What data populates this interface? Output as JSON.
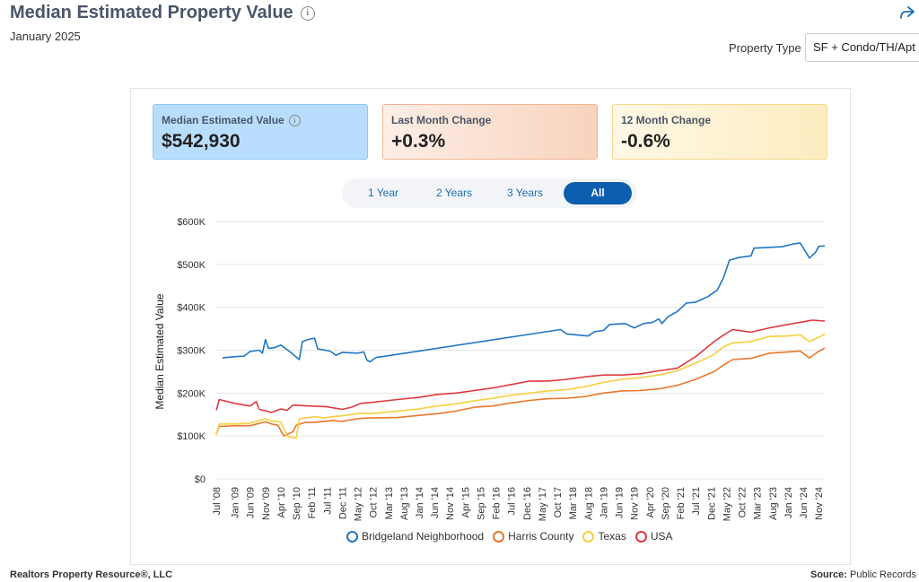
{
  "header": {
    "title": "Median Estimated Property Value",
    "subtitle": "January 2025",
    "property_type_label": "Property Type",
    "property_type_value": "SF + Condo/TH/Apt"
  },
  "cards": [
    {
      "label": "Median Estimated Value",
      "value": "$542,930"
    },
    {
      "label": "Last Month Change",
      "value": "+0.3%"
    },
    {
      "label": "12 Month Change",
      "value": "-0.6%"
    }
  ],
  "tabs": [
    {
      "label": "1 Year",
      "active": false
    },
    {
      "label": "2 Years",
      "active": false
    },
    {
      "label": "3 Years",
      "active": false
    },
    {
      "label": "All",
      "active": true
    }
  ],
  "footer": {
    "left": "Realtors Property Resource®, LLC",
    "right_label": "Source:",
    "right_value": "Public Records"
  },
  "colors": {
    "Bridgeland Neighborhood": "#1f77c4",
    "Harris County": "#e8772e",
    "Texas": "#f7cf3e",
    "USA": "#e0393e"
  },
  "chart_data": {
    "type": "line",
    "ylabel": "Median Estimated Value",
    "ylim": [
      0,
      600000
    ],
    "yticks": [
      "$0",
      "$100K",
      "$200K",
      "$300K",
      "$400K",
      "$500K",
      "$600K"
    ],
    "xticks": [
      "Jul '08",
      "Jan '09",
      "Jun '09",
      "Nov '09",
      "Apr '10",
      "Sep '10",
      "Feb '11",
      "Jul '11",
      "Dec '11",
      "May '12",
      "Oct '12",
      "Mar '13",
      "Aug '13",
      "Jan '14",
      "Jun '14",
      "Nov '14",
      "Apr '15",
      "Sep '15",
      "Feb '16",
      "Jul '16",
      "Dec '16",
      "May '17",
      "Oct '17",
      "Mar '18",
      "Aug '18",
      "Jan '19",
      "Jun '19",
      "Nov '19",
      "Apr '20",
      "Sep '20",
      "Feb '21",
      "Jul '21",
      "Dec '21",
      "May '22",
      "Oct '22",
      "Mar '23",
      "Aug '23",
      "Jan '24",
      "Jun '24",
      "Nov '24"
    ],
    "grid": true,
    "legend_position": "bottom",
    "series": [
      {
        "name": "Bridgeland Neighborhood",
        "points": [
          [
            "2008-09",
            282000
          ],
          [
            "2009-01",
            285000
          ],
          [
            "2009-04",
            286000
          ],
          [
            "2009-06",
            297000
          ],
          [
            "2009-09",
            300000
          ],
          [
            "2009-10",
            293000
          ],
          [
            "2009-11",
            325000
          ],
          [
            "2009-12",
            304000
          ],
          [
            "2010-02",
            306000
          ],
          [
            "2010-04",
            312000
          ],
          [
            "2010-07",
            296000
          ],
          [
            "2010-10",
            278000
          ],
          [
            "2010-11",
            320000
          ],
          [
            "2011-01",
            325000
          ],
          [
            "2011-03",
            328000
          ],
          [
            "2011-04",
            303000
          ],
          [
            "2011-08",
            298000
          ],
          [
            "2011-10",
            288000
          ],
          [
            "2011-12",
            295000
          ],
          [
            "2012-05",
            293000
          ],
          [
            "2012-07",
            296000
          ],
          [
            "2012-08",
            277000
          ],
          [
            "2012-09",
            273000
          ],
          [
            "2012-11",
            283000
          ],
          [
            "2013-01",
            285000
          ],
          [
            "2017-11",
            348000
          ],
          [
            "2018-01",
            338000
          ],
          [
            "2018-08",
            333000
          ],
          [
            "2018-10",
            343000
          ],
          [
            "2019-01",
            346000
          ],
          [
            "2019-03",
            360000
          ],
          [
            "2019-08",
            362000
          ],
          [
            "2019-11",
            352000
          ],
          [
            "2020-02",
            362000
          ],
          [
            "2020-05",
            365000
          ],
          [
            "2020-07",
            373000
          ],
          [
            "2020-08",
            362000
          ],
          [
            "2020-10",
            378000
          ],
          [
            "2021-01",
            390000
          ],
          [
            "2021-04",
            410000
          ],
          [
            "2021-07",
            412000
          ],
          [
            "2021-11",
            425000
          ],
          [
            "2022-02",
            440000
          ],
          [
            "2022-04",
            468000
          ],
          [
            "2022-06",
            510000
          ],
          [
            "2022-09",
            516000
          ],
          [
            "2023-01",
            520000
          ],
          [
            "2023-02",
            538000
          ],
          [
            "2023-08",
            540000
          ],
          [
            "2023-11",
            541000
          ],
          [
            "2024-03",
            548000
          ],
          [
            "2024-05",
            550000
          ],
          [
            "2024-08",
            515000
          ],
          [
            "2024-10",
            528000
          ],
          [
            "2024-11",
            542000
          ],
          [
            "2025-01",
            542930
          ]
        ]
      },
      {
        "name": "Harris County",
        "points": [
          [
            "2008-07",
            105000
          ],
          [
            "2008-08",
            122000
          ],
          [
            "2009-01",
            124000
          ],
          [
            "2009-06",
            124000
          ],
          [
            "2009-11",
            133000
          ],
          [
            "2010-01",
            128000
          ],
          [
            "2010-03",
            125000
          ],
          [
            "2010-05",
            100000
          ],
          [
            "2010-08",
            110000
          ],
          [
            "2010-09",
            125000
          ],
          [
            "2010-12",
            132000
          ],
          [
            "2011-03",
            132000
          ],
          [
            "2011-06",
            134000
          ],
          [
            "2011-09",
            136000
          ],
          [
            "2011-12",
            134000
          ],
          [
            "2012-03",
            138000
          ],
          [
            "2012-06",
            141000
          ],
          [
            "2012-09",
            142000
          ],
          [
            "2013-06",
            143000
          ],
          [
            "2014-01",
            148000
          ],
          [
            "2014-07",
            152000
          ],
          [
            "2015-01",
            158000
          ],
          [
            "2015-07",
            167000
          ],
          [
            "2016-01",
            170000
          ],
          [
            "2016-07",
            177000
          ],
          [
            "2017-01",
            183000
          ],
          [
            "2017-07",
            187000
          ],
          [
            "2018-01",
            188000
          ],
          [
            "2018-07",
            192000
          ],
          [
            "2019-01",
            200000
          ],
          [
            "2019-07",
            205000
          ],
          [
            "2020-01",
            206000
          ],
          [
            "2020-07",
            210000
          ],
          [
            "2021-01",
            218000
          ],
          [
            "2021-07",
            232000
          ],
          [
            "2022-01",
            250000
          ],
          [
            "2022-04",
            265000
          ],
          [
            "2022-07",
            278000
          ],
          [
            "2023-01",
            281000
          ],
          [
            "2023-07",
            293000
          ],
          [
            "2024-01",
            296000
          ],
          [
            "2024-05",
            298000
          ],
          [
            "2024-08",
            282000
          ],
          [
            "2024-11",
            297000
          ],
          [
            "2025-01",
            305000
          ]
        ]
      },
      {
        "name": "Texas",
        "points": [
          [
            "2008-07",
            102000
          ],
          [
            "2008-08",
            128000
          ],
          [
            "2009-01",
            128000
          ],
          [
            "2009-06",
            130000
          ],
          [
            "2009-11",
            140000
          ],
          [
            "2010-01",
            135000
          ],
          [
            "2010-04",
            133000
          ],
          [
            "2010-06",
            100000
          ],
          [
            "2010-09",
            95000
          ],
          [
            "2010-10",
            140000
          ],
          [
            "2011-03",
            145000
          ],
          [
            "2011-06",
            142000
          ],
          [
            "2011-09",
            145000
          ],
          [
            "2011-12",
            147000
          ],
          [
            "2012-03",
            150000
          ],
          [
            "2012-06",
            153000
          ],
          [
            "2012-09",
            152000
          ],
          [
            "2013-06",
            158000
          ],
          [
            "2014-01",
            163000
          ],
          [
            "2014-07",
            170000
          ],
          [
            "2015-01",
            175000
          ],
          [
            "2015-07",
            182000
          ],
          [
            "2016-01",
            188000
          ],
          [
            "2016-07",
            195000
          ],
          [
            "2017-01",
            200000
          ],
          [
            "2017-07",
            205000
          ],
          [
            "2018-01",
            208000
          ],
          [
            "2018-07",
            215000
          ],
          [
            "2019-01",
            225000
          ],
          [
            "2019-07",
            232000
          ],
          [
            "2020-01",
            236000
          ],
          [
            "2020-07",
            242000
          ],
          [
            "2021-01",
            252000
          ],
          [
            "2021-07",
            270000
          ],
          [
            "2022-01",
            290000
          ],
          [
            "2022-04",
            308000
          ],
          [
            "2022-07",
            317000
          ],
          [
            "2023-01",
            320000
          ],
          [
            "2023-07",
            332000
          ],
          [
            "2024-01",
            333000
          ],
          [
            "2024-05",
            336000
          ],
          [
            "2024-08",
            320000
          ],
          [
            "2024-11",
            330000
          ],
          [
            "2025-01",
            338000
          ]
        ]
      },
      {
        "name": "USA",
        "points": [
          [
            "2008-07",
            160000
          ],
          [
            "2008-08",
            185000
          ],
          [
            "2009-01",
            176000
          ],
          [
            "2009-06",
            170000
          ],
          [
            "2009-08",
            180000
          ],
          [
            "2009-09",
            162000
          ],
          [
            "2010-01",
            155000
          ],
          [
            "2010-04",
            163000
          ],
          [
            "2010-06",
            160000
          ],
          [
            "2010-08",
            172000
          ],
          [
            "2011-01",
            170000
          ],
          [
            "2011-07",
            168000
          ],
          [
            "2011-12",
            162000
          ],
          [
            "2012-03",
            167000
          ],
          [
            "2012-06",
            176000
          ],
          [
            "2012-09",
            178000
          ],
          [
            "2013-06",
            185000
          ],
          [
            "2014-01",
            190000
          ],
          [
            "2014-07",
            197000
          ],
          [
            "2015-01",
            200000
          ],
          [
            "2015-07",
            206000
          ],
          [
            "2016-01",
            212000
          ],
          [
            "2016-07",
            220000
          ],
          [
            "2017-01",
            228000
          ],
          [
            "2017-07",
            228000
          ],
          [
            "2018-01",
            232000
          ],
          [
            "2018-07",
            238000
          ],
          [
            "2019-01",
            242000
          ],
          [
            "2019-07",
            242000
          ],
          [
            "2020-01",
            245000
          ],
          [
            "2020-07",
            252000
          ],
          [
            "2021-01",
            258000
          ],
          [
            "2021-07",
            285000
          ],
          [
            "2022-01",
            320000
          ],
          [
            "2022-04",
            335000
          ],
          [
            "2022-07",
            348000
          ],
          [
            "2023-01",
            342000
          ],
          [
            "2023-07",
            352000
          ],
          [
            "2024-01",
            360000
          ],
          [
            "2024-05",
            365000
          ],
          [
            "2024-09",
            370000
          ],
          [
            "2025-01",
            368000
          ]
        ]
      }
    ]
  }
}
